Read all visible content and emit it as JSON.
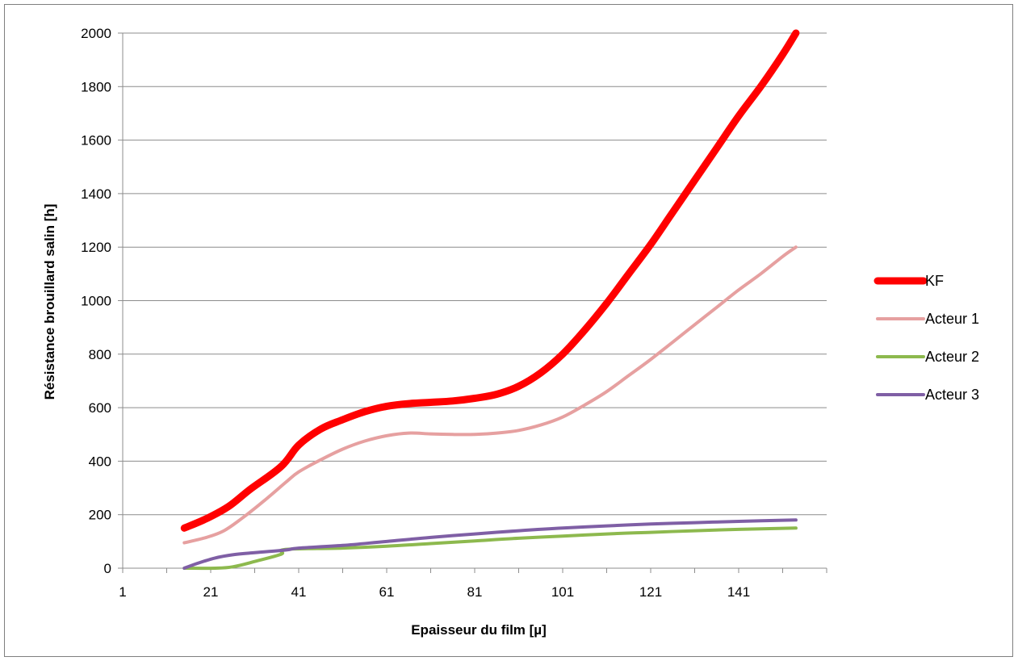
{
  "chart_data": {
    "type": "line",
    "title": "",
    "xlabel": "Epaisseur du film [µ]",
    "ylabel": "Résistance brouillard salin [h]",
    "xlim": [
      1,
      161
    ],
    "ylim": [
      0,
      2000
    ],
    "x_ticks": [
      "1",
      "21",
      "41",
      "61",
      "81",
      "101",
      "121",
      "141"
    ],
    "y_ticks": [
      "0",
      "200",
      "400",
      "600",
      "800",
      "1000",
      "1200",
      "1400",
      "1600",
      "1800",
      "2000"
    ],
    "grid": "horizontal",
    "legend_position": "right",
    "series": [
      {
        "name": "KF",
        "color": "#ff0000",
        "line_width": "thick",
        "points": [
          [
            15,
            150
          ],
          [
            20,
            185
          ],
          [
            25,
            230
          ],
          [
            30,
            295
          ],
          [
            37,
            380
          ],
          [
            41,
            460
          ],
          [
            46,
            520
          ],
          [
            51,
            555
          ],
          [
            56,
            585
          ],
          [
            61,
            605
          ],
          [
            66,
            615
          ],
          [
            71,
            620
          ],
          [
            76,
            625
          ],
          [
            81,
            635
          ],
          [
            86,
            650
          ],
          [
            91,
            680
          ],
          [
            96,
            730
          ],
          [
            101,
            800
          ],
          [
            106,
            890
          ],
          [
            111,
            990
          ],
          [
            116,
            1100
          ],
          [
            121,
            1210
          ],
          [
            126,
            1330
          ],
          [
            131,
            1450
          ],
          [
            136,
            1570
          ],
          [
            141,
            1690
          ],
          [
            146,
            1800
          ],
          [
            151,
            1920
          ],
          [
            154,
            2000
          ]
        ]
      },
      {
        "name": "Acteur 1",
        "color": "#e6a0a0",
        "line_width": "normal",
        "points": [
          [
            15,
            95
          ],
          [
            20,
            115
          ],
          [
            24,
            140
          ],
          [
            28,
            185
          ],
          [
            33,
            250
          ],
          [
            38,
            320
          ],
          [
            41,
            360
          ],
          [
            46,
            405
          ],
          [
            51,
            445
          ],
          [
            56,
            475
          ],
          [
            61,
            495
          ],
          [
            66,
            505
          ],
          [
            71,
            502
          ],
          [
            76,
            500
          ],
          [
            81,
            500
          ],
          [
            86,
            505
          ],
          [
            91,
            515
          ],
          [
            96,
            535
          ],
          [
            101,
            565
          ],
          [
            106,
            610
          ],
          [
            111,
            660
          ],
          [
            116,
            720
          ],
          [
            121,
            780
          ],
          [
            126,
            845
          ],
          [
            131,
            910
          ],
          [
            136,
            975
          ],
          [
            141,
            1040
          ],
          [
            146,
            1100
          ],
          [
            151,
            1165
          ],
          [
            154,
            1200
          ]
        ]
      },
      {
        "name": "Acteur 2",
        "color": "#8db94e",
        "line_width": "normal",
        "points": [
          [
            15,
            0
          ],
          [
            22,
            0
          ],
          [
            26,
            5
          ],
          [
            31,
            25
          ],
          [
            37,
            52
          ],
          [
            38,
            70
          ],
          [
            51,
            75
          ],
          [
            61,
            82
          ],
          [
            71,
            92
          ],
          [
            81,
            102
          ],
          [
            91,
            112
          ],
          [
            101,
            120
          ],
          [
            111,
            128
          ],
          [
            121,
            134
          ],
          [
            131,
            140
          ],
          [
            141,
            145
          ],
          [
            154,
            150
          ]
        ]
      },
      {
        "name": "Acteur 3",
        "color": "#7f5fa5",
        "line_width": "normal",
        "points": [
          [
            15,
            0
          ],
          [
            18,
            18
          ],
          [
            22,
            38
          ],
          [
            26,
            50
          ],
          [
            31,
            58
          ],
          [
            38,
            68
          ],
          [
            41,
            75
          ],
          [
            51,
            85
          ],
          [
            61,
            100
          ],
          [
            71,
            115
          ],
          [
            81,
            128
          ],
          [
            91,
            140
          ],
          [
            101,
            150
          ],
          [
            111,
            158
          ],
          [
            121,
            165
          ],
          [
            131,
            170
          ],
          [
            141,
            175
          ],
          [
            154,
            180
          ]
        ]
      }
    ]
  }
}
